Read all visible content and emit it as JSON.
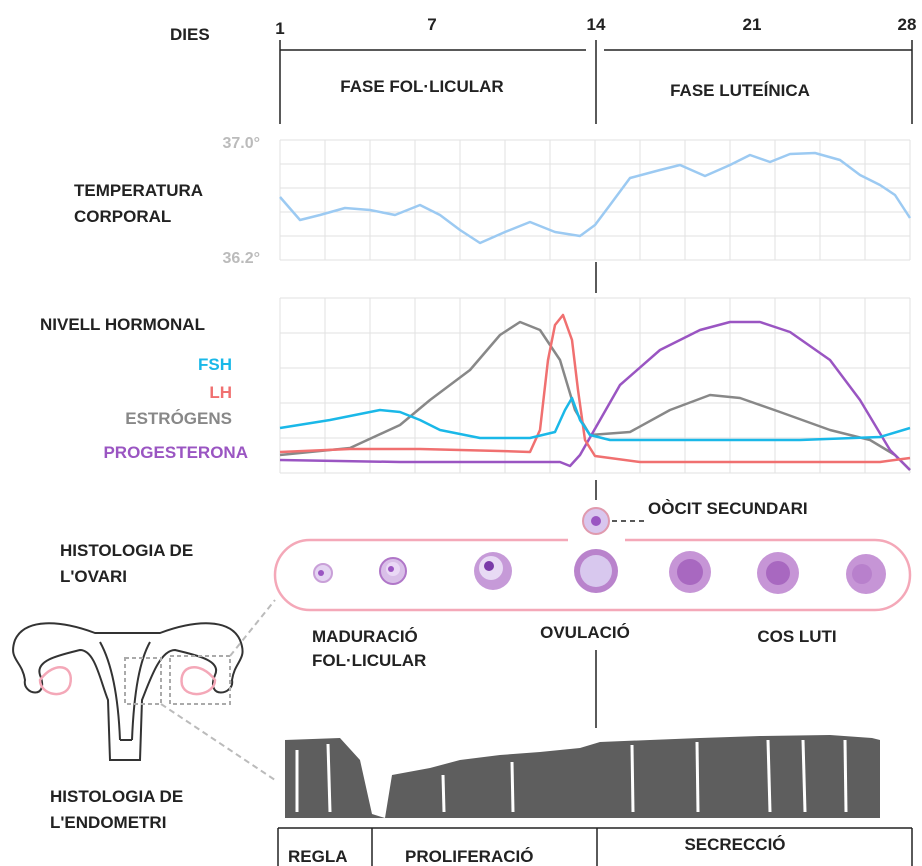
{
  "header": {
    "label": "DIES",
    "days": [
      "1",
      "7",
      "14",
      "21",
      "28"
    ],
    "phases": [
      "FASE FOL·LICULAR",
      "FASE LUTEÍNICA"
    ]
  },
  "temperature": {
    "max_label": "37.0°",
    "min_label": "36.2°",
    "title": [
      "TEMPERATURA",
      "CORPORAL"
    ]
  },
  "hormones": {
    "title": "NIVELL HORMONAL",
    "legend": [
      "FSH",
      "LH",
      "ESTRÓGENS",
      "PROGESTERONA"
    ]
  },
  "ovary": {
    "title": [
      "HISTOLOGIA DE",
      "L'OVARI"
    ],
    "oocyte": "OÒCIT SECUNDARI",
    "stages": [
      [
        "MADURACIÓ",
        "FOL·LICULAR"
      ],
      [
        "OVULACIÓ"
      ],
      [
        "COS LUTI"
      ]
    ]
  },
  "endometrium": {
    "title": [
      "HISTOLOGIA DE",
      "L'ENDOMETRI"
    ],
    "phases": [
      "REGLA",
      "PROLIFERACIÓ",
      "SECRECCIÓ"
    ]
  }
}
